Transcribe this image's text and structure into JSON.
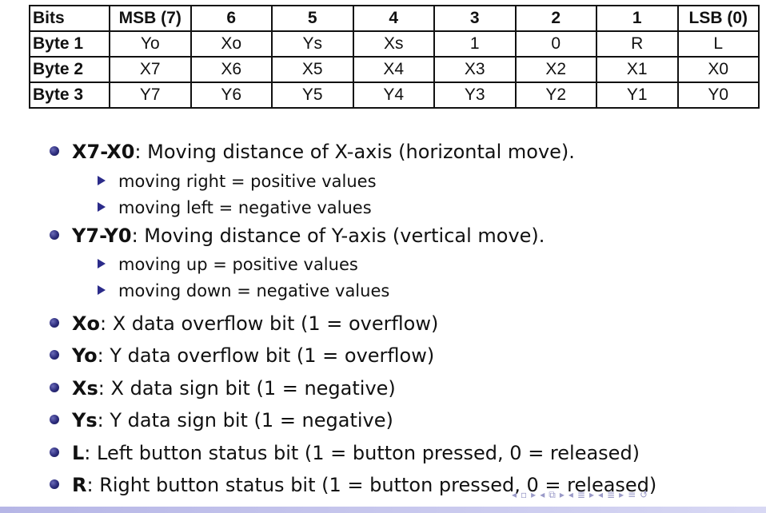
{
  "table": {
    "header": [
      "Bits",
      "MSB (7)",
      "6",
      "5",
      "4",
      "3",
      "2",
      "1",
      "LSB (0)"
    ],
    "rows": [
      {
        "label": "Byte 1",
        "cells": [
          "Yo",
          "Xo",
          "Ys",
          "Xs",
          "1",
          "0",
          "R",
          "L"
        ]
      },
      {
        "label": "Byte 2",
        "cells": [
          "X7",
          "X6",
          "X5",
          "X4",
          "X3",
          "X2",
          "X1",
          "X0"
        ]
      },
      {
        "label": "Byte 3",
        "cells": [
          "Y7",
          "Y6",
          "Y5",
          "Y4",
          "Y3",
          "Y2",
          "Y1",
          "Y0"
        ]
      }
    ]
  },
  "bullets": [
    {
      "term": "X7-X0",
      "text": ": Moving distance of X-axis (horizontal move).",
      "sub": [
        "moving right = positive values",
        "moving left = negative values"
      ]
    },
    {
      "term": "Y7-Y0",
      "text": ": Moving distance of Y-axis (vertical move).",
      "sub": [
        "moving up = positive values",
        "moving down = negative values"
      ]
    },
    {
      "term": "Xo",
      "text": ": X data overflow bit (1 = overflow)"
    },
    {
      "term": "Yo",
      "text": ": Y data overflow bit (1 = overflow)"
    },
    {
      "term": "Xs",
      "text": ": X data sign bit (1 = negative)"
    },
    {
      "term": "Ys",
      "text": ": Y data sign bit (1 = negative)"
    },
    {
      "term": "L",
      "text": ": Left button status bit (1 = button pressed, 0 = released)"
    },
    {
      "term": "R",
      "text": ": Right button status bit (1 = button pressed, 0 = released)"
    }
  ],
  "colors": {
    "bullet": "#2b2b7a",
    "arrow": "#2b2b8a",
    "nav": "#9a9ac8"
  },
  "nav": {
    "icons": [
      "nav-prev-arrow",
      "nav-frame-icon",
      "nav-next-arrow",
      "nav-subsection-icon",
      "nav-section-icon",
      "nav-outline-icon",
      "nav-search-icon"
    ]
  }
}
